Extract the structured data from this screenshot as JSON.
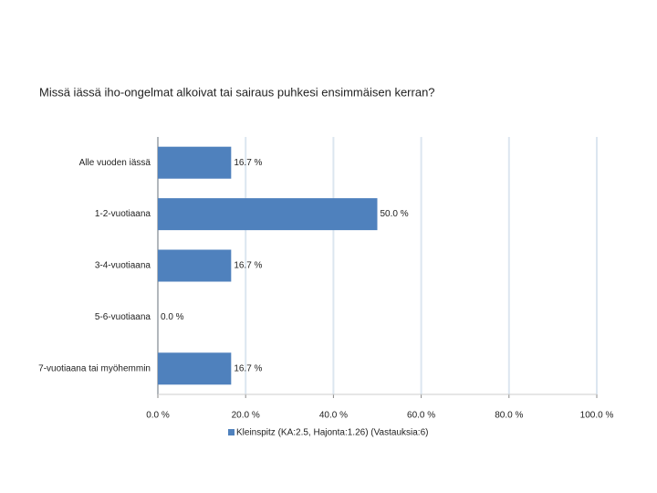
{
  "chart_data": {
    "type": "hbar",
    "title": "Missä iässä iho-ongelmat alkoivat tai sairaus puhkesi ensimmäisen kerran?",
    "categories": [
      "Alle vuoden iässä",
      "1-2-vuotiaana",
      "3-4-vuotiaana",
      "5-6-vuotiaana",
      "7-vuotiaana tai myöhemmin"
    ],
    "series": [
      {
        "name": "Kleinspitz (KA:2.5, Hajonta:1.26) (Vastauksia:6)",
        "color": "#4f81bd",
        "values": [
          16.7,
          50.0,
          16.7,
          0.0,
          16.7
        ],
        "value_labels": [
          "16.7 %",
          "50.0 %",
          "16.7 %",
          "0.0 %",
          "16.7 %"
        ]
      }
    ],
    "xlim": [
      0,
      100
    ],
    "xticks": [
      {
        "value": 0,
        "label": "0.0 %"
      },
      {
        "value": 20,
        "label": "20.0 %"
      },
      {
        "value": 40,
        "label": "40.0 %"
      },
      {
        "value": 60,
        "label": "60.0 %"
      },
      {
        "value": 80,
        "label": "80.0 %"
      },
      {
        "value": 100,
        "label": "100.0 %"
      }
    ],
    "grid": true,
    "legend": "bottom"
  }
}
